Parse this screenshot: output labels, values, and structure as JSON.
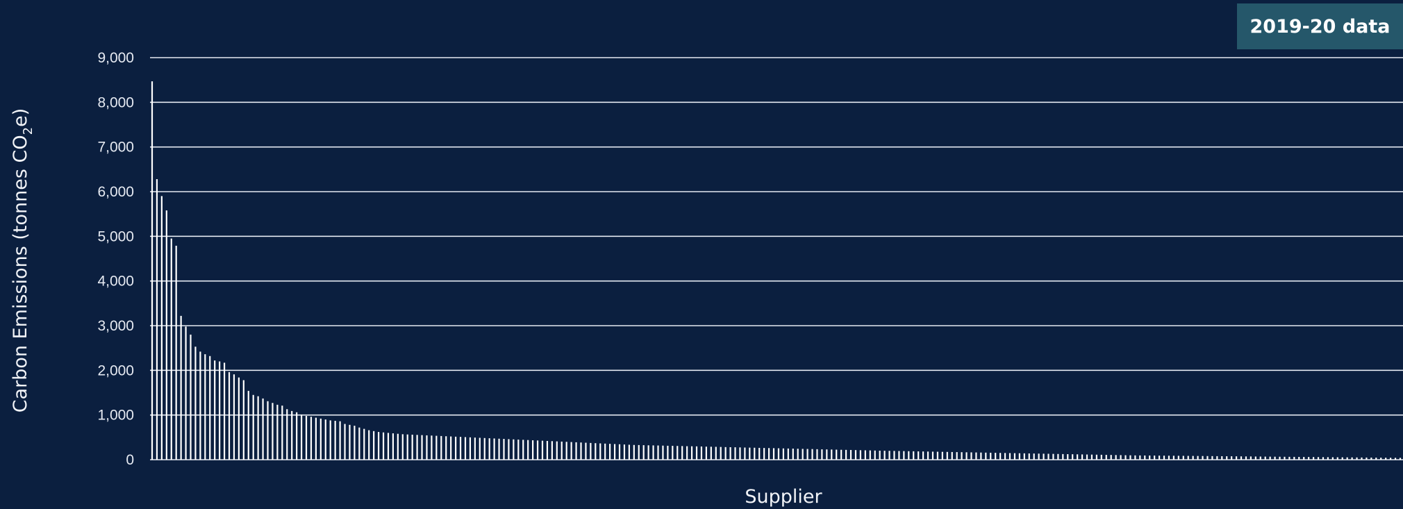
{
  "badge": {
    "label": "2019-20 data"
  },
  "chart_data": {
    "type": "bar",
    "title": "",
    "xlabel": "Supplier",
    "ylabel_main": "Carbon Emissions (tonnes CO",
    "ylabel_sub": "2",
    "ylabel_tail": "e)",
    "ylim": [
      0,
      9000
    ],
    "yticks": [
      0,
      1000,
      2000,
      3000,
      4000,
      5000,
      6000,
      7000,
      8000,
      9000
    ],
    "ytick_labels": [
      "0",
      "1,000",
      "2,000",
      "3,000",
      "4,000",
      "5,000",
      "6,000",
      "7,000",
      "8,000",
      "9,000"
    ],
    "grid": true,
    "legend": "none",
    "bar_color": "#ffffff",
    "values": [
      8470,
      6280,
      5900,
      5580,
      4950,
      4790,
      3220,
      2980,
      2800,
      2530,
      2420,
      2360,
      2320,
      2220,
      2200,
      2170,
      1960,
      1910,
      1840,
      1780,
      1540,
      1450,
      1420,
      1370,
      1310,
      1270,
      1230,
      1210,
      1130,
      1090,
      1060,
      1010,
      980,
      960,
      940,
      920,
      900,
      880,
      870,
      860,
      800,
      780,
      760,
      720,
      690,
      660,
      640,
      620,
      610,
      600,
      590,
      580,
      570,
      565,
      560,
      555,
      550,
      545,
      540,
      535,
      530,
      525,
      520,
      515,
      510,
      505,
      500,
      495,
      490,
      485,
      480,
      475,
      470,
      465,
      460,
      455,
      450,
      445,
      440,
      435,
      430,
      425,
      420,
      415,
      410,
      405,
      400,
      395,
      390,
      385,
      380,
      375,
      370,
      365,
      360,
      355,
      350,
      345,
      340,
      335,
      330,
      328,
      325,
      322,
      320,
      318,
      315,
      312,
      310,
      308,
      305,
      302,
      300,
      298,
      295,
      292,
      290,
      288,
      285,
      282,
      280,
      278,
      275,
      272,
      270,
      268,
      265,
      262,
      260,
      258,
      255,
      252,
      250,
      248,
      245,
      242,
      240,
      238,
      235,
      232,
      230,
      228,
      225,
      222,
      220,
      218,
      215,
      212,
      210,
      208,
      205,
      202,
      200,
      198,
      196,
      194,
      192,
      190,
      188,
      186,
      184,
      182,
      180,
      178,
      176,
      174,
      172,
      170,
      168,
      166,
      164,
      162,
      160,
      158,
      156,
      154,
      152,
      150,
      148,
      146,
      144,
      142,
      140,
      138,
      136,
      134,
      132,
      130,
      128,
      126,
      124,
      122,
      120,
      118,
      116,
      114,
      112,
      110,
      108,
      106,
      104,
      102,
      100,
      98,
      96,
      95,
      94,
      93,
      92,
      91,
      90,
      89,
      88,
      87,
      86,
      85,
      84,
      83,
      82,
      81,
      80,
      79,
      78,
      77,
      76,
      75,
      74,
      73,
      72,
      71,
      70,
      69,
      68,
      67,
      66,
      65,
      64,
      63,
      62,
      61,
      60,
      59,
      58,
      57,
      56,
      55,
      54,
      53,
      52,
      51,
      50,
      49,
      48,
      47,
      46,
      45,
      44,
      43,
      42,
      41
    ]
  }
}
